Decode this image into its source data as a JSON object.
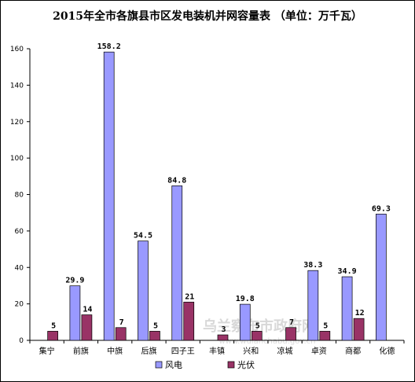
{
  "chart_data": {
    "type": "bar",
    "title": "2015年全市各旗县市区发电装机并网容量表 （单位：万千瓦）",
    "categories": [
      "集宁",
      "前旗",
      "中旗",
      "后旗",
      "四子王",
      "丰镇",
      "兴和",
      "凉城",
      "卓资",
      "商都",
      "化德"
    ],
    "series": [
      {
        "name": "风电",
        "values": [
          null,
          29.9,
          158.2,
          54.5,
          84.8,
          null,
          19.8,
          null,
          38.3,
          34.9,
          69.3
        ],
        "labels": [
          "",
          "29.9",
          "158.2",
          "54.5",
          "84.8",
          "",
          "19.8",
          "",
          "38.3",
          "34.9",
          "69.3"
        ]
      },
      {
        "name": "光伏",
        "values": [
          5,
          14,
          7,
          5,
          21,
          3,
          5,
          7,
          5,
          12,
          null
        ],
        "labels": [
          "5",
          "14",
          "7",
          "5",
          "21",
          "3",
          "5",
          "7",
          "5",
          "12",
          ""
        ]
      }
    ],
    "ylim": [
      0,
      160
    ],
    "yticks": [
      0,
      20,
      40,
      60,
      80,
      100,
      120,
      140,
      160
    ],
    "grid": false,
    "legend": "bottom",
    "colors": {
      "wind": "#9999ff",
      "solar": "#993366",
      "axis": "#000000"
    }
  },
  "watermark": "乌兰察布市政府网 www.wulanchabu.gov.cn"
}
